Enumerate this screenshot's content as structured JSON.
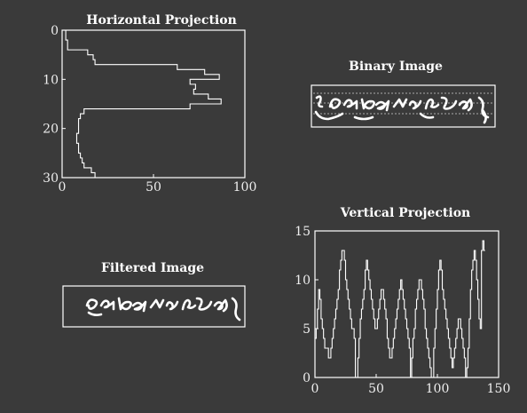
{
  "colors": {
    "background": "#3a3a3a",
    "foreground": "#ffffff"
  },
  "panels": {
    "binary_image": {
      "title": "Binary Image"
    },
    "filtered_image": {
      "title": "Filtered Image"
    }
  },
  "chart_data": [
    {
      "type": "line",
      "title": "Horizontal Projection",
      "orientation": "horizontal-step",
      "xlim": [
        0,
        100
      ],
      "ylim": [
        0,
        30
      ],
      "y_reversed": true,
      "xticks": [
        "0",
        "50",
        "100"
      ],
      "yticks": [
        "0",
        "10",
        "20",
        "30"
      ],
      "row": [
        0,
        1,
        2,
        3,
        4,
        5,
        6,
        7,
        8,
        9,
        10,
        11,
        12,
        13,
        14,
        15,
        16,
        17,
        18,
        19,
        20,
        21,
        22,
        23,
        24,
        25,
        26,
        27,
        28,
        29
      ],
      "value": [
        2,
        2,
        3,
        3,
        14,
        17,
        18,
        63,
        78,
        86,
        70,
        73,
        72,
        80,
        87,
        70,
        12,
        10,
        9,
        9,
        9,
        8,
        8,
        9,
        9,
        10,
        11,
        12,
        16,
        18
      ]
    },
    {
      "type": "line",
      "title": "Vertical Projection",
      "orientation": "vertical-step",
      "xlim": [
        0,
        150
      ],
      "ylim": [
        0,
        15
      ],
      "xticks": [
        "0",
        "50",
        "100",
        "150"
      ],
      "yticks": [
        "0",
        "5",
        "10",
        "15"
      ],
      "values": [
        4,
        5,
        7,
        9,
        8,
        6,
        5,
        4,
        3,
        3,
        3,
        2,
        2,
        3,
        4,
        5,
        6,
        7,
        8,
        9,
        11,
        12,
        13,
        13,
        12,
        10,
        9,
        8,
        7,
        6,
        5,
        5,
        4,
        0,
        0,
        2,
        4,
        6,
        7,
        8,
        9,
        11,
        12,
        11,
        10,
        9,
        8,
        7,
        6,
        5,
        5,
        6,
        7,
        8,
        9,
        9,
        8,
        7,
        6,
        4,
        3,
        2,
        2,
        3,
        4,
        5,
        6,
        7,
        8,
        9,
        10,
        9,
        8,
        7,
        6,
        5,
        4,
        3,
        0,
        2,
        4,
        5,
        7,
        8,
        9,
        10,
        10,
        9,
        8,
        7,
        5,
        4,
        3,
        2,
        1,
        0,
        0,
        3,
        5,
        7,
        9,
        11,
        12,
        11,
        9,
        8,
        7,
        6,
        5,
        4,
        3,
        2,
        1,
        2,
        3,
        4,
        5,
        6,
        6,
        5,
        4,
        3,
        2,
        0,
        1,
        3,
        6,
        9,
        11,
        12,
        13,
        12,
        10,
        8,
        6,
        5,
        13,
        14,
        13
      ]
    }
  ]
}
